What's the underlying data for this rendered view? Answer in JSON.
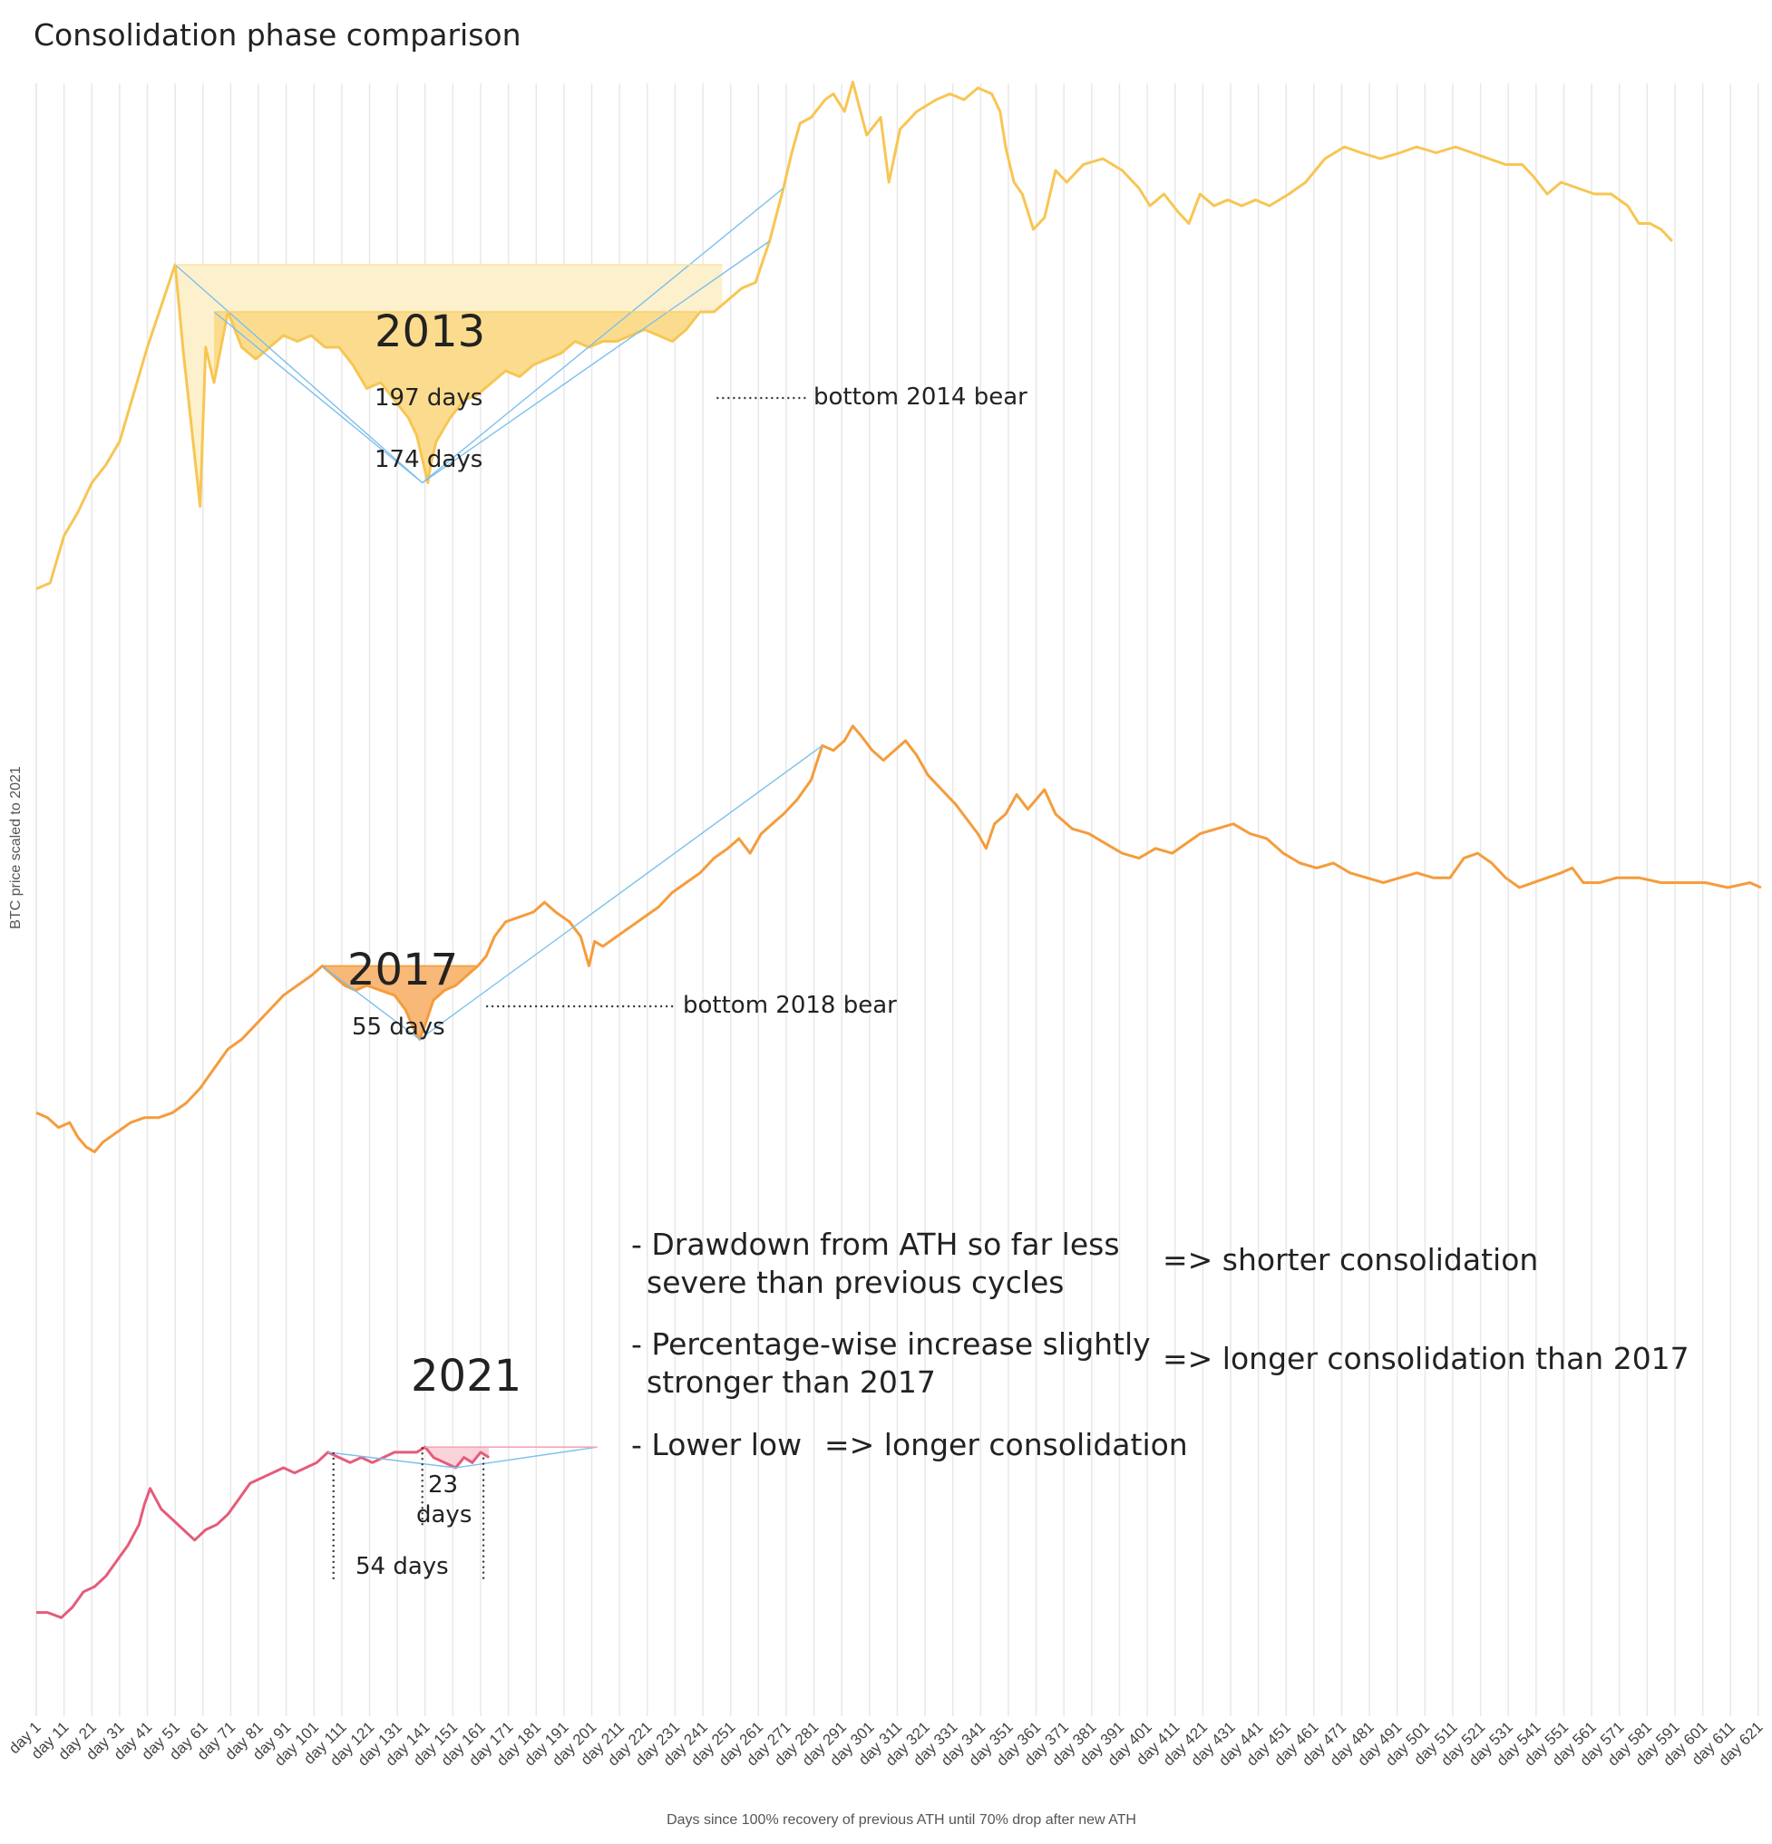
{
  "title": "Consolidation phase comparison",
  "chart_data": {
    "type": "line",
    "xlabel": "Days since 100% recovery of previous ATH until 70% drop after new ATH",
    "ylabel": "BTC price scaled to 2021",
    "x_ticks": [
      "day 1",
      "day 11",
      "day 21",
      "day 31",
      "day 41",
      "day 51",
      "day 61",
      "day 71",
      "day 81",
      "day 91",
      "day 101",
      "day 111",
      "day 121",
      "day 131",
      "day 141",
      "day 151",
      "day 161",
      "day 171",
      "day 181",
      "day 191",
      "day 201",
      "day 211",
      "day 221",
      "day 231",
      "day 241",
      "day 251",
      "day 261",
      "day 271",
      "day 281",
      "day 291",
      "day 301",
      "day 311",
      "day 321",
      "day 331",
      "day 341",
      "day 351",
      "day 361",
      "day 371",
      "day 381",
      "day 391",
      "day 401",
      "day 411",
      "day 421",
      "day 431",
      "day 441",
      "day 451",
      "day 461",
      "day 471",
      "day 481",
      "day 491",
      "day 501",
      "day 511",
      "day 521",
      "day 531",
      "day 541",
      "day 551",
      "day 561",
      "day 571",
      "day 581",
      "day 591",
      "day 601",
      "day 611",
      "day 621"
    ],
    "grid": "vertical",
    "series": [
      {
        "name": "2013",
        "color": "#f7c653",
        "fill": "#fbe3a3",
        "points": [
          [
            1,
            17
          ],
          [
            6,
            18
          ],
          [
            11,
            26
          ],
          [
            16,
            30
          ],
          [
            21,
            35
          ],
          [
            26,
            38
          ],
          [
            31,
            42
          ],
          [
            36,
            50
          ],
          [
            41,
            58
          ],
          [
            46,
            65
          ],
          [
            51,
            72
          ],
          [
            54,
            57
          ],
          [
            57,
            44
          ],
          [
            60,
            31
          ],
          [
            62,
            58
          ],
          [
            65,
            52
          ],
          [
            70,
            64
          ],
          [
            75,
            58
          ],
          [
            80,
            56
          ],
          [
            85,
            58
          ],
          [
            90,
            60
          ],
          [
            95,
            59
          ],
          [
            100,
            60
          ],
          [
            105,
            58
          ],
          [
            110,
            58
          ],
          [
            115,
            55
          ],
          [
            120,
            51
          ],
          [
            125,
            52
          ],
          [
            130,
            49
          ],
          [
            135,
            46
          ],
          [
            138,
            43
          ],
          [
            140,
            39
          ],
          [
            142,
            35
          ],
          [
            143,
            38
          ],
          [
            145,
            42
          ],
          [
            150,
            46
          ],
          [
            155,
            49
          ],
          [
            160,
            50
          ],
          [
            165,
            52
          ],
          [
            170,
            54
          ],
          [
            175,
            53
          ],
          [
            180,
            55
          ],
          [
            185,
            56
          ],
          [
            190,
            57
          ],
          [
            195,
            59
          ],
          [
            200,
            58
          ],
          [
            205,
            59
          ],
          [
            210,
            59
          ],
          [
            215,
            60
          ],
          [
            220,
            61
          ],
          [
            225,
            60
          ],
          [
            230,
            59
          ],
          [
            235,
            61
          ],
          [
            240,
            64
          ],
          [
            245,
            64
          ],
          [
            250,
            66
          ],
          [
            255,
            68
          ],
          [
            260,
            69
          ],
          [
            265,
            76
          ],
          [
            270,
            85
          ],
          [
            273,
            91
          ],
          [
            276,
            96
          ],
          [
            280,
            97
          ],
          [
            285,
            100
          ],
          [
            288,
            101
          ],
          [
            292,
            98
          ],
          [
            295,
            103
          ],
          [
            300,
            94
          ],
          [
            305,
            97
          ],
          [
            308,
            86
          ],
          [
            312,
            95
          ],
          [
            318,
            98
          ],
          [
            325,
            100
          ],
          [
            330,
            101
          ],
          [
            335,
            100
          ],
          [
            340,
            102
          ],
          [
            345,
            101
          ],
          [
            348,
            98
          ],
          [
            350,
            92
          ],
          [
            353,
            86
          ],
          [
            356,
            84
          ],
          [
            360,
            78
          ],
          [
            364,
            80
          ],
          [
            368,
            88
          ],
          [
            372,
            86
          ],
          [
            378,
            89
          ],
          [
            385,
            90
          ],
          [
            392,
            88
          ],
          [
            398,
            85
          ],
          [
            402,
            82
          ],
          [
            407,
            84
          ],
          [
            412,
            81
          ],
          [
            416,
            79
          ],
          [
            420,
            84
          ],
          [
            425,
            82
          ],
          [
            430,
            83
          ],
          [
            435,
            82
          ],
          [
            440,
            83
          ],
          [
            445,
            82
          ],
          [
            452,
            84
          ],
          [
            458,
            86
          ],
          [
            465,
            90
          ],
          [
            472,
            92
          ],
          [
            478,
            91
          ],
          [
            485,
            90
          ],
          [
            492,
            91
          ],
          [
            498,
            92
          ],
          [
            505,
            91
          ],
          [
            512,
            92
          ],
          [
            518,
            91
          ],
          [
            524,
            90
          ],
          [
            530,
            89
          ],
          [
            536,
            89
          ],
          [
            540,
            87
          ],
          [
            545,
            84
          ],
          [
            550,
            86
          ],
          [
            556,
            85
          ],
          [
            562,
            84
          ],
          [
            568,
            84
          ],
          [
            574,
            82
          ],
          [
            578,
            79
          ],
          [
            582,
            79
          ],
          [
            586,
            78
          ],
          [
            590,
            76
          ]
        ]
      },
      {
        "name": "2017",
        "color": "#f59c3c",
        "fill": "#f8c08a",
        "points": [
          [
            1,
            19
          ],
          [
            5,
            18
          ],
          [
            9,
            16
          ],
          [
            13,
            17
          ],
          [
            16,
            14
          ],
          [
            19,
            12
          ],
          [
            22,
            11
          ],
          [
            25,
            13
          ],
          [
            30,
            15
          ],
          [
            35,
            17
          ],
          [
            40,
            18
          ],
          [
            45,
            18
          ],
          [
            50,
            19
          ],
          [
            55,
            21
          ],
          [
            60,
            24
          ],
          [
            65,
            28
          ],
          [
            70,
            32
          ],
          [
            75,
            34
          ],
          [
            80,
            37
          ],
          [
            85,
            40
          ],
          [
            90,
            43
          ],
          [
            95,
            45
          ],
          [
            100,
            47
          ],
          [
            104,
            49
          ],
          [
            108,
            47
          ],
          [
            112,
            45
          ],
          [
            116,
            44
          ],
          [
            120,
            45
          ],
          [
            125,
            44
          ],
          [
            130,
            43
          ],
          [
            134,
            40
          ],
          [
            137,
            36
          ],
          [
            139,
            34
          ],
          [
            141,
            37
          ],
          [
            144,
            42
          ],
          [
            148,
            44
          ],
          [
            152,
            45
          ],
          [
            156,
            47
          ],
          [
            160,
            49
          ],
          [
            163,
            51
          ],
          [
            166,
            55
          ],
          [
            170,
            58
          ],
          [
            175,
            59
          ],
          [
            180,
            60
          ],
          [
            184,
            62
          ],
          [
            188,
            60
          ],
          [
            193,
            58
          ],
          [
            197,
            55
          ],
          [
            200,
            49
          ],
          [
            202,
            54
          ],
          [
            205,
            53
          ],
          [
            210,
            55
          ],
          [
            215,
            57
          ],
          [
            220,
            59
          ],
          [
            225,
            61
          ],
          [
            230,
            64
          ],
          [
            235,
            66
          ],
          [
            240,
            68
          ],
          [
            245,
            71
          ],
          [
            250,
            73
          ],
          [
            254,
            75
          ],
          [
            258,
            72
          ],
          [
            262,
            76
          ],
          [
            266,
            78
          ],
          [
            270,
            80
          ],
          [
            275,
            83
          ],
          [
            280,
            87
          ],
          [
            284,
            94
          ],
          [
            288,
            93
          ],
          [
            292,
            95
          ],
          [
            295,
            98
          ],
          [
            298,
            96
          ],
          [
            302,
            93
          ],
          [
            306,
            91
          ],
          [
            310,
            93
          ],
          [
            314,
            95
          ],
          [
            318,
            92
          ],
          [
            322,
            88
          ],
          [
            327,
            85
          ],
          [
            332,
            82
          ],
          [
            336,
            79
          ],
          [
            340,
            76
          ],
          [
            343,
            73
          ],
          [
            346,
            78
          ],
          [
            350,
            80
          ],
          [
            354,
            84
          ],
          [
            358,
            81
          ],
          [
            364,
            85
          ],
          [
            368,
            80
          ],
          [
            374,
            77
          ],
          [
            380,
            76
          ],
          [
            386,
            74
          ],
          [
            392,
            72
          ],
          [
            398,
            71
          ],
          [
            404,
            73
          ],
          [
            410,
            72
          ],
          [
            415,
            74
          ],
          [
            420,
            76
          ],
          [
            426,
            77
          ],
          [
            432,
            78
          ],
          [
            438,
            76
          ],
          [
            444,
            75
          ],
          [
            450,
            72
          ],
          [
            456,
            70
          ],
          [
            462,
            69
          ],
          [
            468,
            70
          ],
          [
            474,
            68
          ],
          [
            480,
            67
          ],
          [
            486,
            66
          ],
          [
            492,
            67
          ],
          [
            498,
            68
          ],
          [
            504,
            67
          ],
          [
            510,
            67
          ],
          [
            515,
            71
          ],
          [
            520,
            72
          ],
          [
            525,
            70
          ],
          [
            530,
            67
          ],
          [
            535,
            65
          ],
          [
            540,
            66
          ],
          [
            545,
            67
          ],
          [
            550,
            68
          ],
          [
            554,
            69
          ],
          [
            558,
            66
          ],
          [
            564,
            66
          ],
          [
            570,
            67
          ],
          [
            578,
            67
          ],
          [
            586,
            66
          ],
          [
            594,
            66
          ],
          [
            602,
            66
          ],
          [
            610,
            65
          ],
          [
            618,
            66
          ],
          [
            622,
            65
          ]
        ]
      },
      {
        "name": "2021",
        "color": "#e65b7a",
        "fill": "#f6c6cf",
        "points": [
          [
            1,
            2
          ],
          [
            5,
            2
          ],
          [
            10,
            1
          ],
          [
            14,
            3
          ],
          [
            18,
            6
          ],
          [
            22,
            7
          ],
          [
            26,
            9
          ],
          [
            30,
            12
          ],
          [
            34,
            15
          ],
          [
            38,
            19
          ],
          [
            40,
            23
          ],
          [
            42,
            26
          ],
          [
            46,
            22
          ],
          [
            50,
            20
          ],
          [
            54,
            18
          ],
          [
            58,
            16
          ],
          [
            62,
            18
          ],
          [
            66,
            19
          ],
          [
            70,
            21
          ],
          [
            74,
            24
          ],
          [
            78,
            27
          ],
          [
            82,
            28
          ],
          [
            86,
            29
          ],
          [
            90,
            30
          ],
          [
            94,
            29
          ],
          [
            98,
            30
          ],
          [
            102,
            31
          ],
          [
            106,
            33
          ],
          [
            110,
            32
          ],
          [
            114,
            31
          ],
          [
            118,
            32
          ],
          [
            122,
            31
          ],
          [
            126,
            32
          ],
          [
            130,
            33
          ],
          [
            134,
            33
          ],
          [
            138,
            33
          ],
          [
            141,
            34
          ],
          [
            144,
            32
          ],
          [
            148,
            31
          ],
          [
            152,
            30
          ],
          [
            155,
            32
          ],
          [
            158,
            31
          ],
          [
            161,
            33
          ],
          [
            164,
            32
          ]
        ]
      }
    ],
    "annotations": {
      "y2013": "2013",
      "d197": "197 days",
      "d174": "174 days",
      "bear2014": "bottom 2014 bear",
      "y2017": "2017",
      "d55": "55 days",
      "bear2018": "bottom 2018 bear",
      "y2021": "2021",
      "d23a": "23",
      "d23b": "days",
      "d54": "54 days"
    },
    "notes": [
      {
        "lines": [
          "- Drawdown from ATH so far less",
          "severe than previous cycles"
        ],
        "arrow": "=> shorter consolidation"
      },
      {
        "lines": [
          "- Percentage-wise increase slightly",
          "stronger than 2017"
        ],
        "arrow": "=> longer consolidation than 2017"
      },
      {
        "lines": [
          "- Lower low"
        ],
        "arrow": "=> longer consolidation"
      }
    ]
  }
}
